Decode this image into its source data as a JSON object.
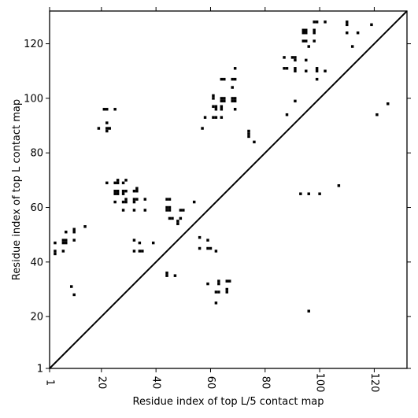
{
  "chart_data": {
    "type": "scatter",
    "marker": "square",
    "title": "",
    "xlabel": "Residue index of top L/5 contact map",
    "ylabel": "Residue index of top L contact map",
    "xlim": [
      1,
      132
    ],
    "ylim": [
      1,
      132
    ],
    "x_ticks": [
      {
        "value": 1,
        "label": "1"
      },
      {
        "value": 20,
        "label": "20"
      },
      {
        "value": 40,
        "label": "40"
      },
      {
        "value": 60,
        "label": "60"
      },
      {
        "value": 80,
        "label": "80"
      },
      {
        "value": 100,
        "label": "100"
      },
      {
        "value": 120,
        "label": "120"
      }
    ],
    "y_ticks": [
      {
        "value": 1,
        "label": "1"
      },
      {
        "value": 20,
        "label": "20"
      },
      {
        "value": 40,
        "label": "40"
      },
      {
        "value": 60,
        "label": "60"
      },
      {
        "value": 80,
        "label": "80"
      },
      {
        "value": 100,
        "label": "100"
      },
      {
        "value": 120,
        "label": "120"
      }
    ],
    "x_tick_rotation": 90,
    "diagonal": true,
    "grid": false,
    "legend": "none",
    "colors": {
      "marker": "#000000",
      "line": "#000000",
      "background": "#ffffff"
    },
    "series": [
      {
        "name": "",
        "points": [
          [
            3,
            43
          ],
          [
            3,
            44
          ],
          [
            3,
            47
          ],
          [
            6,
            44
          ],
          [
            6,
            47
          ],
          [
            6,
            48
          ],
          [
            7,
            47
          ],
          [
            7,
            48
          ],
          [
            7,
            51
          ],
          [
            9,
            31
          ],
          [
            10,
            28
          ],
          [
            10,
            48
          ],
          [
            10,
            51
          ],
          [
            10,
            52
          ],
          [
            14,
            53
          ],
          [
            19,
            89
          ],
          [
            21,
            96
          ],
          [
            22,
            96
          ],
          [
            22,
            91
          ],
          [
            22,
            89
          ],
          [
            22,
            88
          ],
          [
            23,
            89
          ],
          [
            25,
            96
          ],
          [
            22,
            69
          ],
          [
            25,
            69
          ],
          [
            26,
            69
          ],
          [
            26,
            70
          ],
          [
            25,
            66
          ],
          [
            26,
            66
          ],
          [
            25,
            65
          ],
          [
            26,
            65
          ],
          [
            25,
            62
          ],
          [
            28,
            69
          ],
          [
            29,
            70
          ],
          [
            28,
            66
          ],
          [
            29,
            66
          ],
          [
            28,
            65
          ],
          [
            28,
            62
          ],
          [
            29,
            62
          ],
          [
            29,
            63
          ],
          [
            28,
            59
          ],
          [
            32,
            66
          ],
          [
            33,
            66
          ],
          [
            33,
            67
          ],
          [
            32,
            63
          ],
          [
            33,
            63
          ],
          [
            32,
            62
          ],
          [
            32,
            59
          ],
          [
            36,
            63
          ],
          [
            36,
            59
          ],
          [
            32,
            48
          ],
          [
            32,
            44
          ],
          [
            34,
            47
          ],
          [
            34,
            44
          ],
          [
            35,
            44
          ],
          [
            39,
            47
          ],
          [
            44,
            63
          ],
          [
            45,
            63
          ],
          [
            44,
            60
          ],
          [
            45,
            60
          ],
          [
            45,
            59
          ],
          [
            44,
            59
          ],
          [
            45,
            56
          ],
          [
            46,
            56
          ],
          [
            48,
            55
          ],
          [
            48,
            54
          ],
          [
            49,
            59
          ],
          [
            50,
            59
          ],
          [
            49,
            56
          ],
          [
            54,
            62
          ],
          [
            56,
            49
          ],
          [
            56,
            45
          ],
          [
            59,
            48
          ],
          [
            59,
            45
          ],
          [
            60,
            45
          ],
          [
            44,
            36
          ],
          [
            44,
            35
          ],
          [
            47,
            35
          ],
          [
            59,
            32
          ],
          [
            62,
            25
          ],
          [
            62,
            29
          ],
          [
            63,
            29
          ],
          [
            63,
            32
          ],
          [
            63,
            33
          ],
          [
            62,
            44
          ],
          [
            66,
            29
          ],
          [
            66,
            30
          ],
          [
            66,
            33
          ],
          [
            67,
            33
          ],
          [
            96,
            22
          ],
          [
            57,
            89
          ],
          [
            58,
            93
          ],
          [
            61,
            93
          ],
          [
            62,
            93
          ],
          [
            61,
            97
          ],
          [
            62,
            97
          ],
          [
            62,
            96
          ],
          [
            61,
            100
          ],
          [
            61,
            101
          ],
          [
            64,
            93
          ],
          [
            64,
            96
          ],
          [
            64,
            97
          ],
          [
            64,
            99
          ],
          [
            65,
            100
          ],
          [
            65,
            99
          ],
          [
            64,
            100
          ],
          [
            64,
            107
          ],
          [
            65,
            107
          ],
          [
            68,
            104
          ],
          [
            68,
            107
          ],
          [
            69,
            107
          ],
          [
            68,
            100
          ],
          [
            69,
            100
          ],
          [
            69,
            99
          ],
          [
            68,
            99
          ],
          [
            69,
            96
          ],
          [
            69,
            111
          ],
          [
            74,
            88
          ],
          [
            74,
            87
          ],
          [
            74,
            86
          ],
          [
            76,
            84
          ],
          [
            87,
            115
          ],
          [
            87,
            111
          ],
          [
            88,
            111
          ],
          [
            88,
            94
          ],
          [
            90,
            115
          ],
          [
            91,
            115
          ],
          [
            91,
            114
          ],
          [
            91,
            111
          ],
          [
            91,
            110
          ],
          [
            91,
            99
          ],
          [
            94,
            125
          ],
          [
            94,
            124
          ],
          [
            95,
            124
          ],
          [
            95,
            125
          ],
          [
            94,
            121
          ],
          [
            95,
            121
          ],
          [
            96,
            119
          ],
          [
            95,
            114
          ],
          [
            95,
            110
          ],
          [
            98,
            125
          ],
          [
            98,
            124
          ],
          [
            98,
            121
          ],
          [
            98,
            128
          ],
          [
            99,
            128
          ],
          [
            99,
            111
          ],
          [
            99,
            110
          ],
          [
            99,
            107
          ],
          [
            102,
            110
          ],
          [
            102,
            128
          ],
          [
            110,
            128
          ],
          [
            110,
            127
          ],
          [
            110,
            124
          ],
          [
            112,
            119
          ],
          [
            114,
            124
          ],
          [
            119,
            127
          ],
          [
            121,
            94
          ],
          [
            125,
            98
          ],
          [
            93,
            65
          ],
          [
            96,
            65
          ],
          [
            100,
            65
          ],
          [
            107,
            68
          ]
        ]
      }
    ]
  }
}
